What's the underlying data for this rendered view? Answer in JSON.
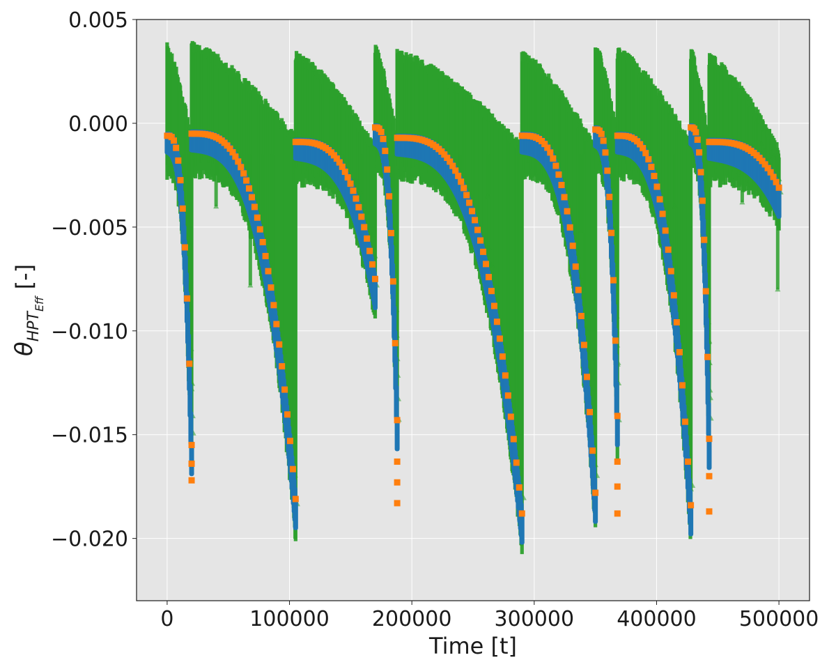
{
  "chart_data": {
    "type": "scatter",
    "title": "",
    "xlabel": "Time [t]",
    "ylabel": {
      "symbol": "θ",
      "subscript": "HPT",
      "subsubscript": "Eff",
      "unit": "[-]"
    },
    "xlim": [
      -25000,
      525000
    ],
    "ylim": [
      -0.023,
      0.005
    ],
    "xticks": [
      0,
      100000,
      200000,
      300000,
      400000,
      500000
    ],
    "xtick_labels": [
      "0",
      "100000",
      "200000",
      "300000",
      "400000",
      "500000"
    ],
    "yticks": [
      0.005,
      0.0,
      -0.005,
      -0.01,
      -0.015,
      -0.02
    ],
    "ytick_labels": [
      "0.005",
      "0.000",
      "−0.005",
      "−0.010",
      "−0.015",
      "−0.020"
    ],
    "grid": true,
    "background": "#e5e5e5",
    "colors": {
      "green_series": "#2ca02c",
      "blue_series": "#1f77b4",
      "orange_series": "#ff7f0e"
    },
    "markers": {
      "green_series": "triangle",
      "blue_series": "circle",
      "orange_series": "square"
    },
    "segments": [
      {
        "start": 0,
        "end": 20000,
        "startVal": -0.0006,
        "endVal": -0.0155,
        "tail": [
          -0.0164,
          -0.0172
        ],
        "greenTop": 0.0039,
        "spikes": [
          [
            14000,
            -0.0048
          ],
          [
            18000,
            -0.0058
          ]
        ]
      },
      {
        "start": 20000,
        "end": 105000,
        "startVal": -0.0005,
        "endVal": -0.0181,
        "tail": [],
        "greenTop": 0.004,
        "spikes": [
          [
            40000,
            -0.004
          ],
          [
            68000,
            -0.0078
          ],
          [
            78000,
            -0.0072
          ],
          [
            86000,
            -0.0092
          ]
        ]
      },
      {
        "start": 105000,
        "end": 170000,
        "startVal": -0.0009,
        "endVal": -0.0075,
        "tail": [],
        "greenTop": 0.0035,
        "spikes": [
          [
            130000,
            -0.003
          ],
          [
            145000,
            -0.0028
          ],
          [
            160000,
            -0.004
          ]
        ]
      },
      {
        "start": 170000,
        "end": 188000,
        "startVal": -0.0002,
        "endVal": -0.0143,
        "tail": [
          -0.0163,
          -0.0173,
          -0.0183
        ],
        "greenTop": 0.0038,
        "spikes": [
          [
            183000,
            -0.005
          ]
        ]
      },
      {
        "start": 188000,
        "end": 290000,
        "startVal": -0.0007,
        "endVal": -0.0188,
        "tail": [],
        "greenTop": 0.0036,
        "spikes": [
          [
            215000,
            -0.002
          ],
          [
            240000,
            -0.003
          ],
          [
            262000,
            -0.0035
          ]
        ]
      },
      {
        "start": 290000,
        "end": 350000,
        "startVal": -0.0006,
        "endVal": -0.0178,
        "tail": [],
        "greenTop": 0.0035,
        "spikes": [
          [
            315000,
            -0.0025
          ],
          [
            338000,
            -0.0052
          ]
        ]
      },
      {
        "start": 350000,
        "end": 368000,
        "startVal": -0.0003,
        "endVal": -0.0141,
        "tail": [
          -0.0163,
          -0.0175,
          -0.0188
        ],
        "greenTop": 0.004,
        "spikes": [
          [
            364000,
            -0.004
          ]
        ]
      },
      {
        "start": 368000,
        "end": 428000,
        "startVal": -0.0006,
        "endVal": -0.0184,
        "tail": [],
        "greenTop": 0.0037,
        "spikes": [
          [
            395000,
            -0.003
          ],
          [
            415000,
            -0.004
          ]
        ]
      },
      {
        "start": 428000,
        "end": 443000,
        "startVal": -0.0002,
        "endVal": -0.0152,
        "tail": [
          -0.017,
          -0.0187
        ],
        "greenTop": 0.0037,
        "spikes": [
          [
            440000,
            -0.003
          ]
        ]
      },
      {
        "start": 443000,
        "end": 500000,
        "startVal": -0.0009,
        "endVal": -0.0031,
        "tail": [],
        "greenTop": 0.0034,
        "spikes": [
          [
            470000,
            -0.0038
          ],
          [
            499000,
            -0.008
          ]
        ]
      }
    ]
  }
}
